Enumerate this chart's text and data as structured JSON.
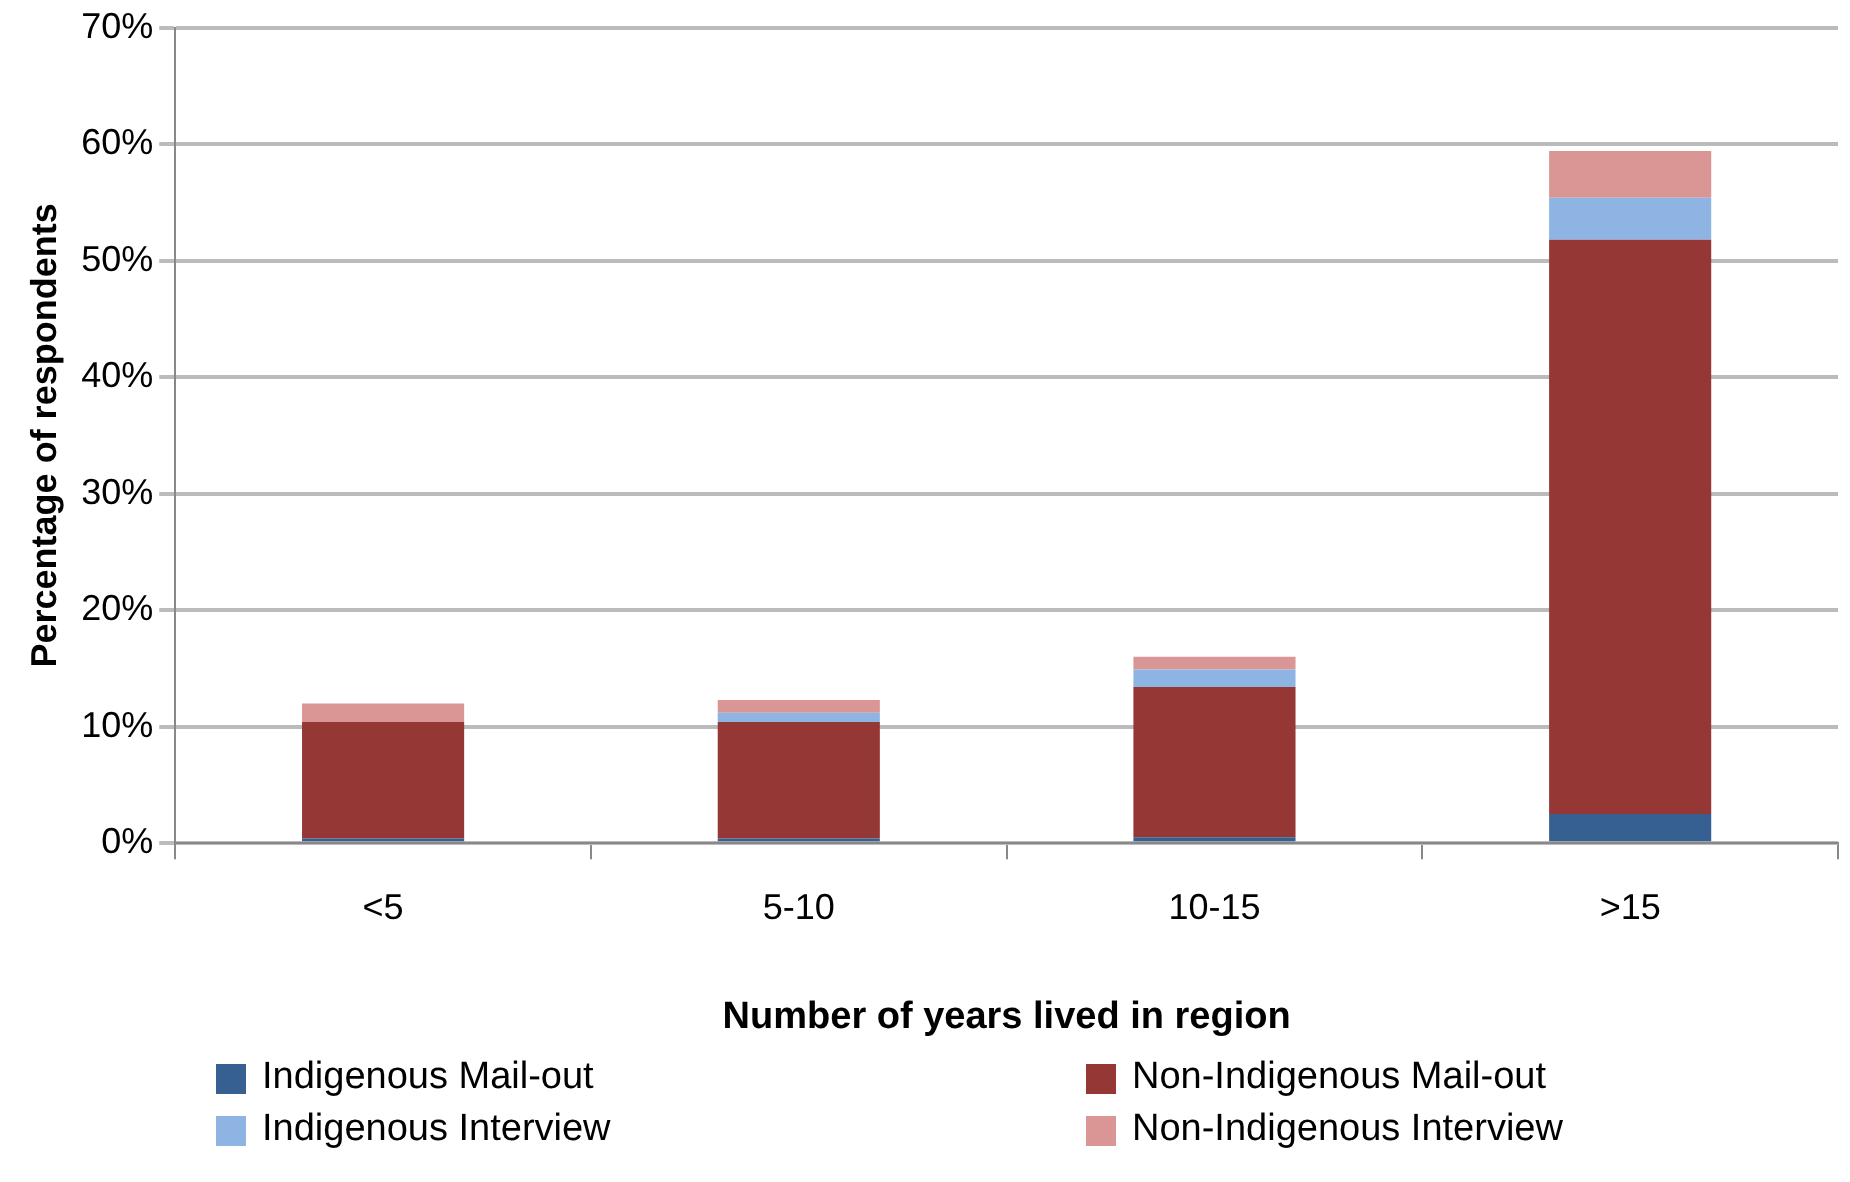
{
  "chart_data": {
    "type": "bar",
    "stacked": true,
    "xlabel": "Number of years lived in region",
    "ylabel": "Percentage of respondents",
    "categories": [
      "<5",
      "5-10",
      "10-15",
      ">15"
    ],
    "series": [
      {
        "name": "Indigenous Mail-out",
        "color": "#376092",
        "values": [
          0.4,
          0.4,
          0.5,
          2.5
        ]
      },
      {
        "name": "Non-Indigenous Mail-out",
        "color": "#953735",
        "values": [
          10.0,
          10.0,
          12.9,
          49.3
        ]
      },
      {
        "name": "Indigenous Interview",
        "color": "#8eb4e3",
        "values": [
          0,
          0.8,
          1.5,
          3.6
        ]
      },
      {
        "name": "Non-Indigenous Interview",
        "color": "#d99694",
        "values": [
          1.6,
          1.1,
          1.1,
          4.0
        ]
      }
    ],
    "ylim": [
      0,
      70
    ],
    "yticks": [
      {
        "value": 0,
        "label": "0%"
      },
      {
        "value": 10,
        "label": "10%"
      },
      {
        "value": 20,
        "label": "20%"
      },
      {
        "value": 30,
        "label": "30%"
      },
      {
        "value": 40,
        "label": "40%"
      },
      {
        "value": 50,
        "label": "50%"
      },
      {
        "value": 60,
        "label": "60%"
      },
      {
        "value": 70,
        "label": "70%"
      }
    ],
    "grid": "y",
    "legend": "bottom"
  }
}
